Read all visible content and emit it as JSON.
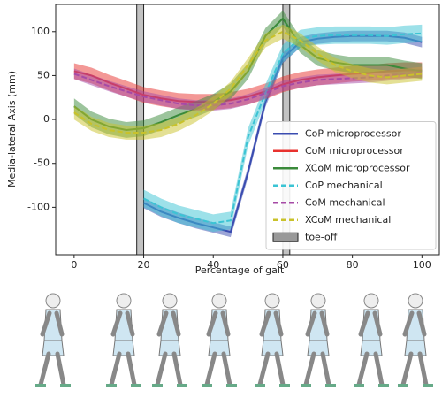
{
  "chart_data": {
    "type": "line",
    "xlabel": "Percentage of gait",
    "ylabel": "Media-lateral Axis (mm)",
    "xlim": [
      -5.3,
      105
    ],
    "ylim": [
      -154,
      131
    ],
    "xticks": [
      0,
      20,
      40,
      60,
      80,
      100
    ],
    "yticks": [
      -100,
      -50,
      0,
      50,
      100
    ],
    "legend": "lower right",
    "x": [
      0,
      5,
      10,
      15,
      20,
      25,
      30,
      35,
      40,
      45,
      50,
      55,
      60,
      65,
      70,
      75,
      80,
      85,
      90,
      95,
      100
    ],
    "series": [
      {
        "name": "CoP microprocessor",
        "color": "#3a4cb0",
        "dash": false,
        "band": 6,
        "values": [
          null,
          null,
          null,
          null,
          -95,
          -105,
          -112,
          -118,
          -123,
          -128,
          -60,
          20,
          70,
          88,
          92,
          94,
          95,
          95,
          95,
          93,
          88
        ]
      },
      {
        "name": "CoM microprocessor",
        "color": "#e8322e",
        "dash": false,
        "band": 9,
        "values": [
          55,
          50,
          42,
          35,
          28,
          24,
          21,
          20,
          20,
          22,
          26,
          32,
          40,
          45,
          48,
          50,
          52,
          53,
          55,
          56,
          56
        ]
      },
      {
        "name": "XCoM microprocessor",
        "color": "#3a8a3a",
        "dash": false,
        "band": 9,
        "values": [
          15,
          0,
          -8,
          -12,
          -10,
          -3,
          5,
          12,
          20,
          32,
          55,
          95,
          115,
          85,
          70,
          65,
          62,
          62,
          62,
          58,
          55
        ]
      },
      {
        "name": "CoP mechanical",
        "color": "#3bc4d4",
        "dash": true,
        "band": 10,
        "values": [
          null,
          null,
          null,
          null,
          -90,
          -100,
          -108,
          -113,
          -118,
          -115,
          -20,
          30,
          75,
          92,
          95,
          96,
          96,
          96,
          95,
          97,
          98
        ]
      },
      {
        "name": "CoM mechanical",
        "color": "#a64aa6",
        "dash": true,
        "band": 6,
        "values": [
          52,
          45,
          38,
          32,
          26,
          22,
          18,
          16,
          16,
          18,
          23,
          30,
          38,
          42,
          45,
          46,
          47,
          48,
          50,
          52,
          54
        ]
      },
      {
        "name": "XCoM mechanical",
        "color": "#c9c22a",
        "dash": true,
        "band": 8,
        "values": [
          8,
          -5,
          -12,
          -15,
          -15,
          -12,
          -5,
          5,
          18,
          35,
          62,
          90,
          100,
          90,
          75,
          62,
          55,
          50,
          48,
          50,
          52
        ]
      }
    ],
    "toe_off": {
      "name": "toe-off",
      "color": "#999999",
      "ranges": [
        [
          18,
          20
        ],
        [
          60,
          62
        ]
      ]
    }
  }
}
